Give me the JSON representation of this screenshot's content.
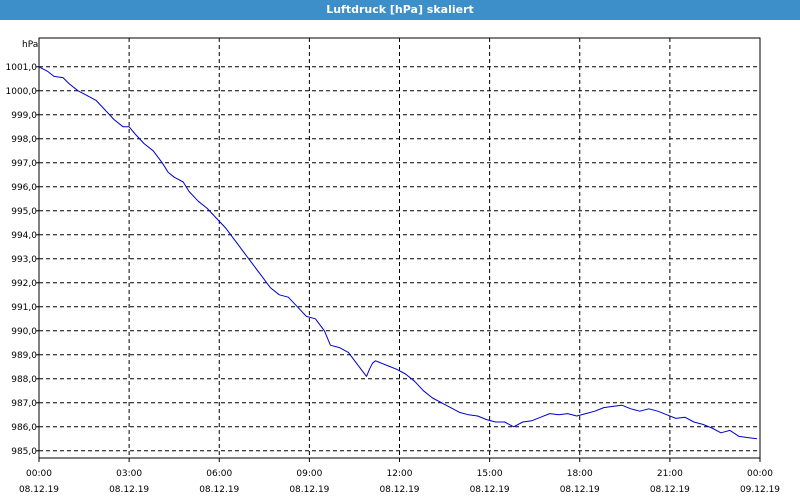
{
  "window": {
    "title": "Luftdruck [hPa] skaliert"
  },
  "colors": {
    "titlebar": "#3c8fc8",
    "series": "#0000cc",
    "grid": "#000000"
  },
  "chart_data": {
    "type": "line",
    "title": "Luftdruck [hPa] skaliert",
    "ylabel": "hPa",
    "xlabel": "",
    "ylim": [
      984.7,
      1002.2
    ],
    "xlim": [
      0,
      24
    ],
    "yticks": [
      {
        "value": 1001.0,
        "label": "1001,0"
      },
      {
        "value": 1000.0,
        "label": "1000,0"
      },
      {
        "value": 999.0,
        "label": "999,0"
      },
      {
        "value": 998.0,
        "label": "998,0"
      },
      {
        "value": 997.0,
        "label": "997,0"
      },
      {
        "value": 996.0,
        "label": "996,0"
      },
      {
        "value": 995.0,
        "label": "995,0"
      },
      {
        "value": 994.0,
        "label": "994,0"
      },
      {
        "value": 993.0,
        "label": "993,0"
      },
      {
        "value": 992.0,
        "label": "992,0"
      },
      {
        "value": 991.0,
        "label": "991,0"
      },
      {
        "value": 990.0,
        "label": "990,0"
      },
      {
        "value": 989.0,
        "label": "989,0"
      },
      {
        "value": 988.0,
        "label": "988,0"
      },
      {
        "value": 987.0,
        "label": "987,0"
      },
      {
        "value": 986.0,
        "label": "986,0"
      },
      {
        "value": 985.0,
        "label": "985,0"
      }
    ],
    "xticks": [
      {
        "hour": 0,
        "time": "00:00",
        "date": "08.12.19"
      },
      {
        "hour": 3,
        "time": "03:00",
        "date": "08.12.19"
      },
      {
        "hour": 6,
        "time": "06:00",
        "date": "08.12.19"
      },
      {
        "hour": 9,
        "time": "09:00",
        "date": "08.12.19"
      },
      {
        "hour": 12,
        "time": "12:00",
        "date": "08.12.19"
      },
      {
        "hour": 15,
        "time": "15:00",
        "date": "08.12.19"
      },
      {
        "hour": 18,
        "time": "18:00",
        "date": "08.12.19"
      },
      {
        "hour": 21,
        "time": "21:00",
        "date": "08.12.19"
      },
      {
        "hour": 24,
        "time": "00:00",
        "date": "09.12.19"
      }
    ],
    "grid": true,
    "series": [
      {
        "x": [
          0,
          0.3,
          0.5,
          0.8,
          1.0,
          1.3,
          1.6,
          1.9,
          2.2,
          2.5,
          2.8,
          3.0,
          3.2,
          3.5,
          3.8,
          4.1,
          4.3,
          4.5,
          4.8,
          5.0,
          5.3,
          5.6,
          5.9,
          6.2,
          6.5,
          6.8,
          7.1,
          7.4,
          7.7,
          8.0,
          8.3,
          8.6,
          8.9,
          9.2,
          9.5,
          9.7,
          10.0,
          10.3,
          10.6,
          10.9,
          11.0,
          11.1,
          11.2,
          11.3,
          11.6,
          11.9,
          12.2,
          12.5,
          12.8,
          13.1,
          13.4,
          13.7,
          14.0,
          14.3,
          14.6,
          14.9,
          15.2,
          15.5,
          15.8,
          16.1,
          16.4,
          16.7,
          17.0,
          17.3,
          17.6,
          17.9,
          18.2,
          18.5,
          18.8,
          19.1,
          19.4,
          19.7,
          20.0,
          20.3,
          20.6,
          20.9,
          21.2,
          21.5,
          21.8,
          22.1,
          22.4,
          22.7,
          23.0,
          23.3,
          23.6,
          23.9
        ],
        "y": [
          1001.0,
          1000.8,
          1000.6,
          1000.55,
          1000.3,
          1000.0,
          999.8,
          999.6,
          999.2,
          998.8,
          998.5,
          998.5,
          998.2,
          997.8,
          997.5,
          997.0,
          996.6,
          996.4,
          996.2,
          995.8,
          995.4,
          995.1,
          994.7,
          994.3,
          993.8,
          993.3,
          992.8,
          992.3,
          991.8,
          991.5,
          991.4,
          991.0,
          990.6,
          990.5,
          990.0,
          989.4,
          989.3,
          989.1,
          988.6,
          988.1,
          988.4,
          988.65,
          988.75,
          988.7,
          988.55,
          988.4,
          988.2,
          987.9,
          987.5,
          987.2,
          987.0,
          986.8,
          986.6,
          986.5,
          986.45,
          986.3,
          986.2,
          986.2,
          986.0,
          986.2,
          986.25,
          986.4,
          986.55,
          986.5,
          986.55,
          986.45,
          986.55,
          986.65,
          986.8,
          986.85,
          986.9,
          986.75,
          986.65,
          986.75,
          986.65,
          986.5,
          986.35,
          986.4,
          986.2,
          986.1,
          985.95,
          985.75,
          985.85,
          985.6,
          985.55,
          985.5
        ]
      }
    ]
  }
}
